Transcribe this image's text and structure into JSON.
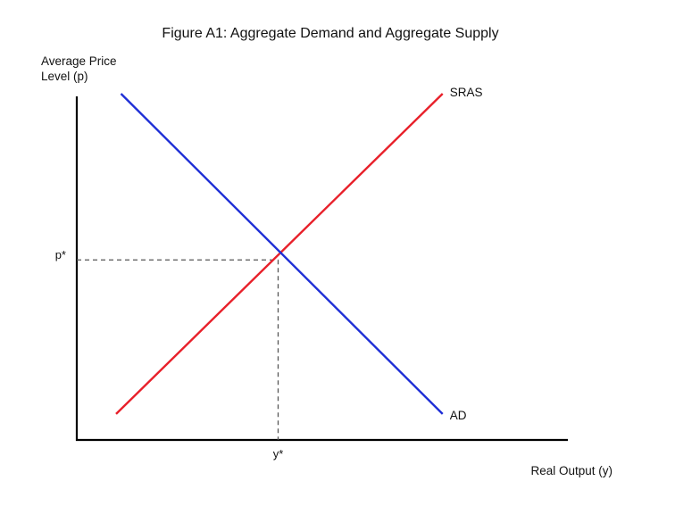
{
  "chart_data": {
    "type": "line",
    "title": "Figure A1: Aggregate Demand and Aggregate Supply",
    "ylabel_lines": [
      "Average Price",
      "Level (p)"
    ],
    "xlabel": "Real Output (y)",
    "xlim": [
      0,
      10
    ],
    "ylim": [
      0,
      10
    ],
    "series": [
      {
        "name": "SRAS",
        "color": "#e8202a",
        "points": [
          [
            0.8,
            0.75
          ],
          [
            7.45,
            10.0
          ]
        ]
      },
      {
        "name": "AD",
        "color": "#1f2fd6",
        "points": [
          [
            0.9,
            10.0
          ],
          [
            7.45,
            0.75
          ]
        ]
      }
    ],
    "equilibrium": {
      "x": 4.1,
      "y": 5.2,
      "x_label": "y*",
      "y_label": "p*",
      "guide_style": "dashed",
      "guide_color": "#555555"
    },
    "axis_color": "#000000",
    "grid": false,
    "legend": "none"
  }
}
